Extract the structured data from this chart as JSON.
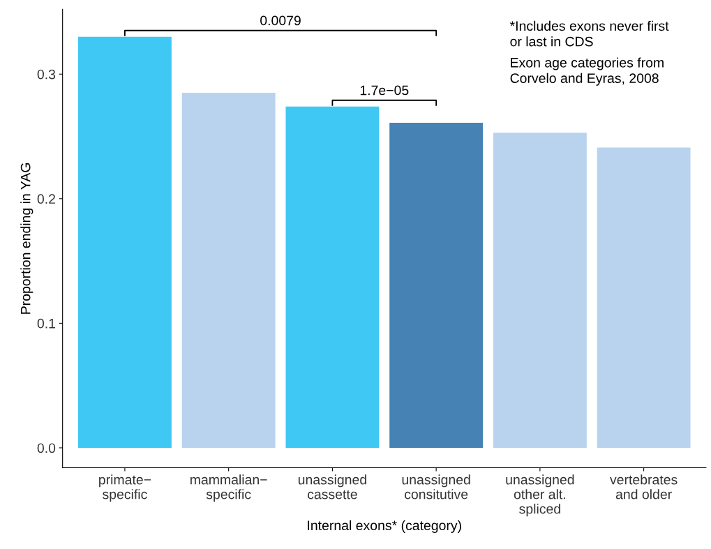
{
  "chart_data": {
    "type": "bar",
    "categories": [
      "primate−\nspecific",
      "mammalian−\nspecific",
      "unassigned\ncassette",
      "unassigned\nconsitutive",
      "unassigned\nother alt.\nspliced",
      "vertebrates\nand older"
    ],
    "values": [
      0.33,
      0.285,
      0.274,
      0.261,
      0.253,
      0.241
    ],
    "colors": [
      "#40c8f4",
      "#b9d3ee",
      "#40c8f4",
      "#4682b4",
      "#b9d3ee",
      "#b9d3ee"
    ],
    "xlabel": "Internal exons* (category)",
    "ylabel": "Proportion ending in YAG",
    "ylim": [
      -0.016,
      0.352
    ],
    "yticks": [
      {
        "value": 0,
        "label": "0.0"
      },
      {
        "value": 0.1,
        "label": "0.1"
      },
      {
        "value": 0.2,
        "label": "0.2"
      },
      {
        "value": 0.3,
        "label": "0.3"
      }
    ],
    "annotations": [
      "0.0079",
      "1.7e−05",
      "*Includes exons never first\nor last in CDS",
      "Exon age categories from\nCorvelo and Eyras, 2008"
    ],
    "grid": false,
    "legend": false
  }
}
